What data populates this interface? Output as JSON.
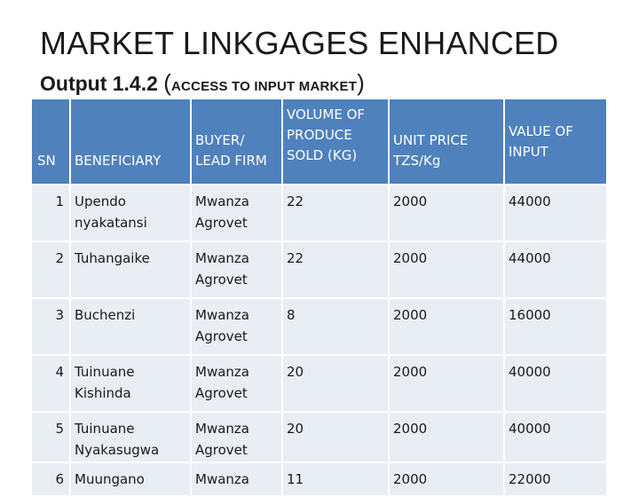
{
  "title": "MARKET LINKGAGES ENHANCED",
  "subtitle": {
    "main": "Output 1.4.2",
    "open": "(",
    "detail": "ACCESS TO INPUT MARKET",
    "close": ")"
  },
  "table": {
    "headers": {
      "sn": "SN",
      "beneficiary": "BENEFICIARY",
      "buyer": "BUYER/ LEAD FIRM",
      "volume": "VOLUME OF PRODUCE SOLD (KG)",
      "unit_price": "UNIT PRICE TZS/Kg",
      "value": "VALUE OF INPUT"
    },
    "rows": [
      {
        "sn": "1",
        "beneficiary": "Upendo nyakatansi",
        "buyer": "Mwanza Agrovet",
        "volume": "22",
        "unit_price": "2000",
        "value": "44000"
      },
      {
        "sn": "2",
        "beneficiary": "Tuhangaike",
        "buyer": "Mwanza Agrovet",
        "volume": "22",
        "unit_price": "2000",
        "value": "44000"
      },
      {
        "sn": "3",
        "beneficiary": "Buchenzi",
        "buyer": "Mwanza Agrovet",
        "volume": "8",
        "unit_price": "2000",
        "value": "16000"
      },
      {
        "sn": "4",
        "beneficiary": "Tuinuane Kishinda",
        "buyer": "Mwanza Agrovet",
        "volume": "20",
        "unit_price": "2000",
        "value": "40000"
      },
      {
        "sn": "5",
        "beneficiary": "Tuinuane Nyakasugwa",
        "buyer": "Mwanza Agrovet",
        "volume": "20",
        "unit_price": "2000",
        "value": "40000"
      },
      {
        "sn": "6",
        "beneficiary": "Muungano",
        "buyer": "Mwanza",
        "volume": "11",
        "unit_price": "2000",
        "value": "22000"
      }
    ]
  },
  "colors": {
    "header_fill": "#4f81bd",
    "row_fill": "#e9edf4"
  }
}
